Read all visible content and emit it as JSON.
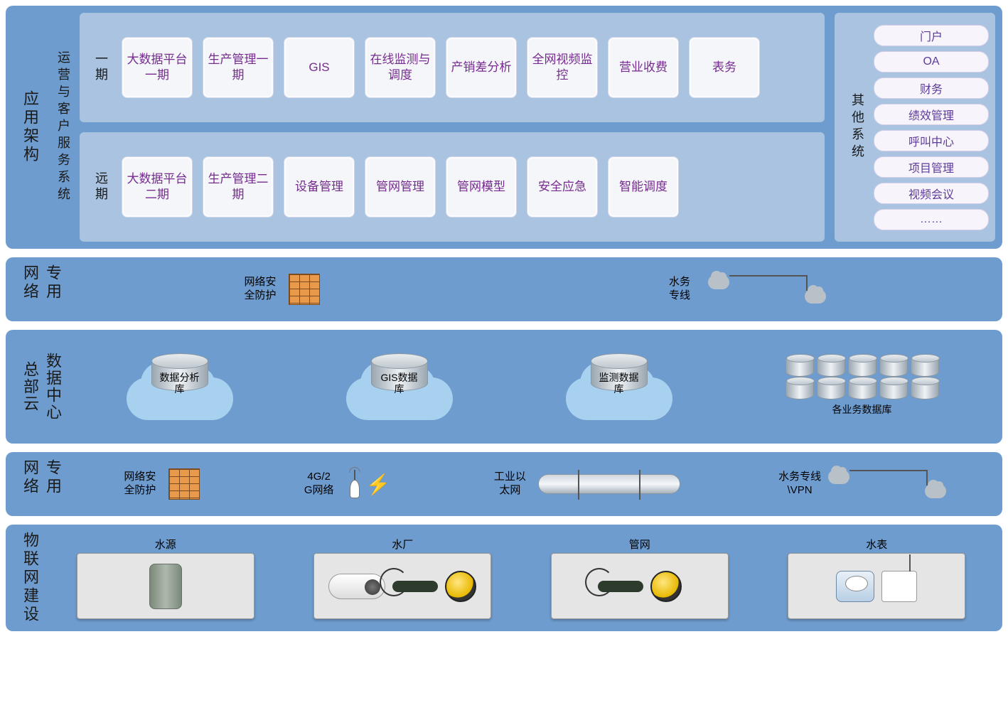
{
  "colors": {
    "layer_bg": "#6e9cce",
    "panel_bg": "#a9c3e1",
    "module_bg": "#f4f6fa",
    "module_text": "#762b8e",
    "section_text": "#1a1a1a",
    "pill_bg": "#f7f5fb",
    "pill_text": "#5d3a99",
    "cloud_bg": "#a8d1f0",
    "iot_card_bg": "#e5e5e5"
  },
  "layers": {
    "l1": {
      "title": "应用架构",
      "sub_title": "运营与客户服务系统",
      "phases": [
        {
          "label": "一期",
          "modules": [
            "大数据平台一期",
            "生产管理一期",
            "GIS",
            "在线监测与调度",
            "产销差分析",
            "全网视频监控",
            "营业收费",
            "表务"
          ]
        },
        {
          "label": "远期",
          "modules": [
            "大数据平台二期",
            "生产管理二期",
            "设备管理",
            "管网管理",
            "管网模型",
            "安全应急",
            "智能调度"
          ]
        }
      ],
      "other": {
        "title": "其他系统",
        "items": [
          "门户",
          "OA",
          "财务",
          "绩效管理",
          "呼叫中心",
          "项目管理",
          "视频会议",
          "……"
        ]
      }
    },
    "l2": {
      "title": "专用网络",
      "items": [
        {
          "label": "网络安全防护",
          "icon": "firewall"
        },
        {
          "label": "水务专线",
          "icon": "vpn-line"
        }
      ]
    },
    "l3": {
      "title_cols": [
        "总部云",
        "数据中心"
      ],
      "dbs": [
        {
          "label": "数据分析库"
        },
        {
          "label": "GIS数据库"
        },
        {
          "label": "监测数据库"
        }
      ],
      "cluster_label": "各业务数据库",
      "cluster_count": 10
    },
    "l4": {
      "title": "专用网络",
      "items": [
        {
          "label": "网络安全防护",
          "icon": "firewall"
        },
        {
          "label": "4G/2G网络",
          "icon": "antenna"
        },
        {
          "label": "工业以太网",
          "icon": "pipe"
        },
        {
          "label": "水务专线\\VPN",
          "icon": "vpn-line"
        }
      ]
    },
    "l5": {
      "title": "物联网建设",
      "cards": [
        {
          "title": "水源",
          "devices": [
            "cyl"
          ]
        },
        {
          "title": "水厂",
          "devices": [
            "camera",
            "sensor",
            "gauge"
          ]
        },
        {
          "title": "管网",
          "devices": [
            "sensor",
            "gauge"
          ]
        },
        {
          "title": "水表",
          "devices": [
            "meter",
            "modem"
          ]
        }
      ]
    }
  }
}
